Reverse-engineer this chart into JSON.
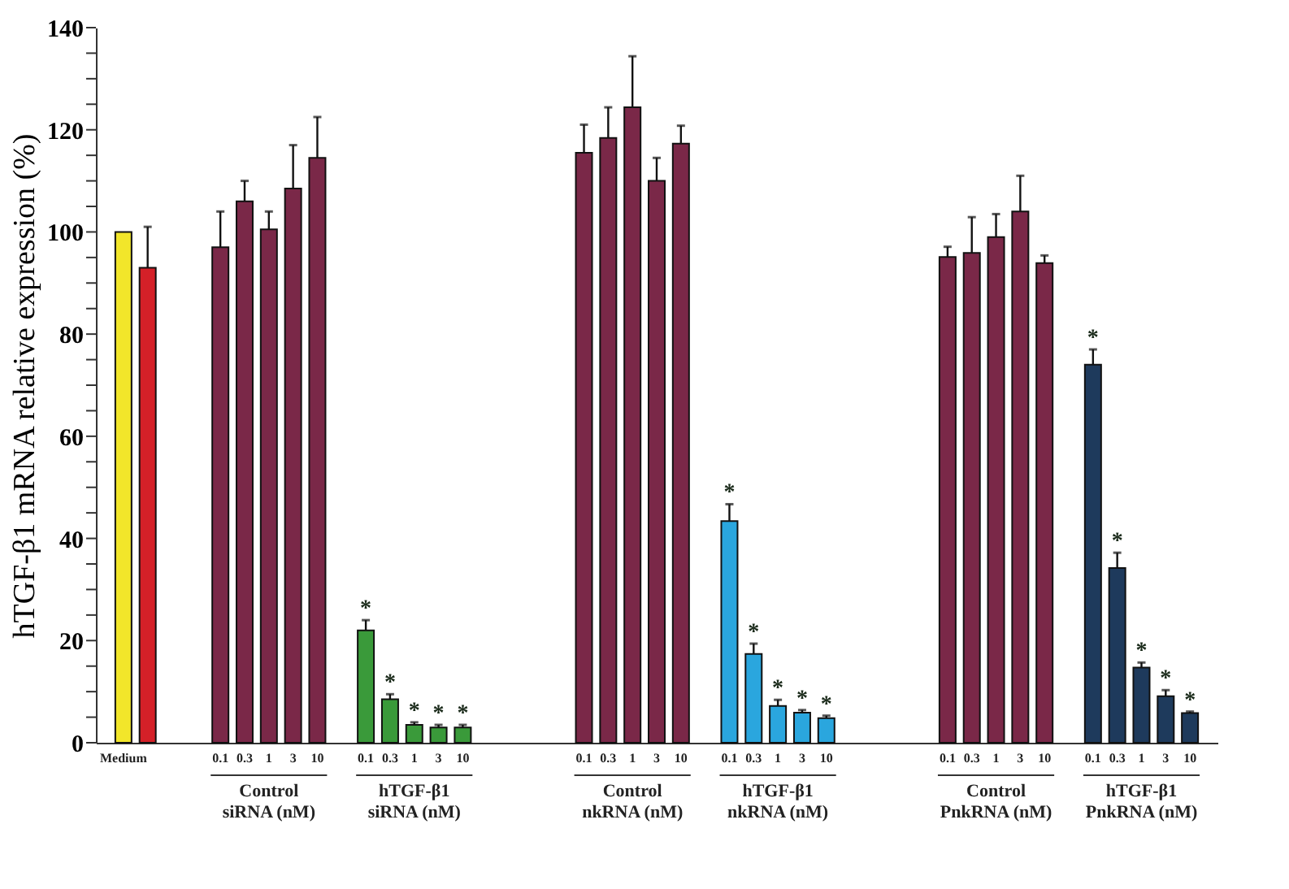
{
  "chart_data": {
    "type": "bar",
    "ylabel": "hTGF-β1 mRNA relative expression (%)",
    "categories": [
      "Medium",
      null,
      null,
      null,
      "0.1",
      "0.3",
      "1",
      "3",
      "10",
      null,
      "0.1",
      "0.3",
      "1",
      "3",
      "10",
      null,
      null,
      null,
      null,
      "0.1",
      "0.3",
      "1",
      "3",
      "10",
      null,
      "0.1",
      "0.3",
      "1",
      "3",
      "10",
      null,
      null,
      null,
      null,
      "0.1",
      "0.3",
      "1",
      "3",
      "10",
      null,
      "0.1",
      "0.3",
      "1",
      "3",
      "10"
    ],
    "values": [
      100,
      93,
      null,
      null,
      97,
      106,
      100.5,
      108.5,
      114.5,
      null,
      22,
      8.5,
      3.5,
      3,
      3,
      null,
      null,
      null,
      null,
      115.5,
      118.4,
      124.4,
      110,
      117.3,
      null,
      43.4,
      17.4,
      7.2,
      5.9,
      4.8,
      null,
      null,
      null,
      null,
      95.1,
      95.9,
      99,
      104,
      93.9,
      null,
      74,
      34.2,
      14.7,
      9.1,
      5.8
    ],
    "errors": [
      null,
      8,
      null,
      null,
      7,
      4,
      3.5,
      8.5,
      8,
      null,
      2,
      1,
      0.5,
      0.5,
      0.5,
      null,
      null,
      null,
      null,
      5.5,
      6,
      10,
      4.5,
      3.5,
      null,
      3.3,
      2,
      1.2,
      0.5,
      0.5,
      null,
      null,
      null,
      null,
      2,
      7,
      4.5,
      7,
      1.5,
      null,
      3,
      3,
      1,
      1.2,
      0.3
    ],
    "value_labels": [
      null,
      null,
      null,
      null,
      null,
      null,
      null,
      null,
      null,
      null,
      "*",
      "*",
      "*",
      "*",
      "*",
      null,
      null,
      null,
      null,
      null,
      null,
      null,
      null,
      null,
      null,
      "*",
      "*",
      "*",
      "*",
      "*",
      null,
      null,
      null,
      null,
      null,
      null,
      null,
      null,
      null,
      null,
      "*",
      "*",
      "*",
      "*",
      "*"
    ],
    "colors": [
      "#f2e62a",
      "#d42028",
      null,
      null,
      "#7a2848",
      "#7a2848",
      "#7a2848",
      "#7a2848",
      "#7a2848",
      null,
      "#3a9a3a",
      "#3a9a3a",
      "#3a9a3a",
      "#3a9a3a",
      "#3a9a3a",
      null,
      null,
      null,
      null,
      "#7a2848",
      "#7a2848",
      "#7a2848",
      "#7a2848",
      "#7a2848",
      null,
      "#2aa6de",
      "#2aa6de",
      "#2aa6de",
      "#2aa6de",
      "#2aa6de",
      null,
      null,
      null,
      null,
      "#7a2848",
      "#7a2848",
      "#7a2848",
      "#7a2848",
      "#7a2848",
      null,
      "#1e3a5c",
      "#1e3a5c",
      "#1e3a5c",
      "#1e3a5c",
      "#1e3a5c"
    ],
    "ylim": [
      0,
      140
    ],
    "yticks": [
      0,
      {
        "value": 5,
        "label": null
      },
      {
        "value": 10,
        "label": null
      },
      {
        "value": 15,
        "label": null
      },
      20,
      {
        "value": 25,
        "label": null
      },
      {
        "value": 30,
        "label": null
      },
      {
        "value": 35,
        "label": null
      },
      40,
      {
        "value": 45,
        "label": null
      },
      {
        "value": 50,
        "label": null
      },
      {
        "value": 55,
        "label": null
      },
      60,
      {
        "value": 65,
        "label": null
      },
      {
        "value": 70,
        "label": null
      },
      {
        "value": 75,
        "label": null
      },
      80,
      {
        "value": 85,
        "label": null
      },
      {
        "value": 90,
        "label": null
      },
      {
        "value": 95,
        "label": null
      },
      100,
      {
        "value": 105,
        "label": null
      },
      {
        "value": 110,
        "label": null
      },
      {
        "value": 115,
        "label": null
      },
      120,
      {
        "value": 125,
        "label": null
      },
      {
        "value": 130,
        "label": null
      },
      {
        "value": 135,
        "label": null
      },
      140
    ],
    "annotations": [
      "Control\nsiRNA (nM)",
      "hTGF-β1\nsiRNA (nM)",
      "Control\nnkRNA (nM)",
      "hTGF-β1\nnkRNA (nM)",
      "Control\nPnkRNA (nM)",
      "hTGF-β1\nPnkRNA (nM)"
    ],
    "grid": false
  }
}
